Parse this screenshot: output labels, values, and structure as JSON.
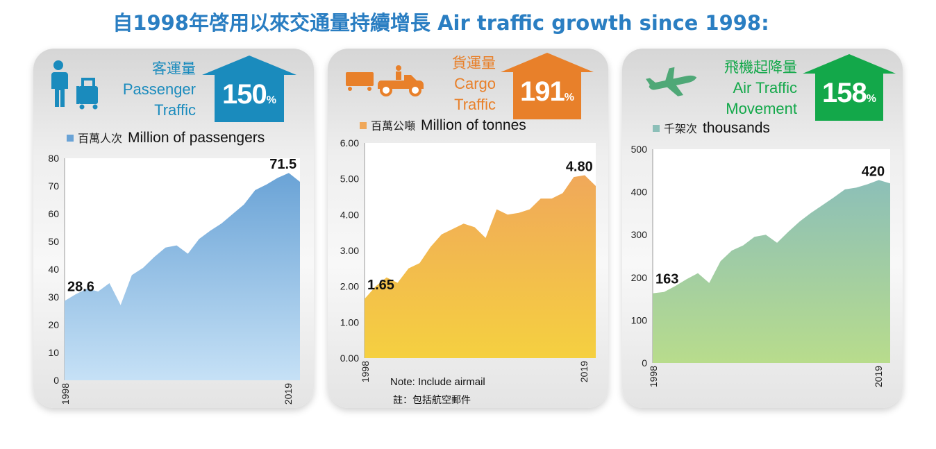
{
  "title": "自1998年啓用以來交通量持續增長 Air traffic growth since 1998:",
  "colors": {
    "title": "#2a7ec2",
    "passenger_accent": "#1a8bbd",
    "cargo_accent": "#e8802a",
    "movement_accent": "#13a84a"
  },
  "panels": [
    {
      "id": "passenger",
      "icon": "passenger-luggage-icon",
      "label_zh": "客運量",
      "label_en_1": "Passenger",
      "label_en_2": "Traffic",
      "growth_value": "150",
      "growth_unit": "%",
      "legend_zh": "百萬人次",
      "legend_en": "Million of passengers"
    },
    {
      "id": "cargo",
      "icon": "cargo-truck-icon",
      "label_zh": "貨運量",
      "label_en_1": "Cargo",
      "label_en_2": "Traffic",
      "growth_value": "191",
      "growth_unit": "%",
      "legend_zh": "百萬公噸",
      "legend_en": "Million of tonnes",
      "note_en": "Note: Include airmail",
      "note_zh": "註：包括航空郵件"
    },
    {
      "id": "movement",
      "icon": "airplane-icon",
      "label_zh": "飛機起降量",
      "label_en_1": "Air Traffic",
      "label_en_2": "Movement",
      "growth_value": "158",
      "growth_unit": "%",
      "legend_zh": "千架次",
      "legend_en": "thousands"
    }
  ],
  "chart_data": [
    {
      "type": "area",
      "years": [
        1998,
        1999,
        2000,
        2001,
        2002,
        2003,
        2004,
        2005,
        2006,
        2007,
        2008,
        2009,
        2010,
        2011,
        2012,
        2013,
        2014,
        2015,
        2016,
        2017,
        2018,
        2019
      ],
      "x_tick_labels": [
        "1998",
        "2019"
      ],
      "values": [
        28.6,
        31,
        33,
        32,
        35,
        27.1,
        37.9,
        40.5,
        44.4,
        47.8,
        48.6,
        45.6,
        50.9,
        53.9,
        56.5,
        59.9,
        63.3,
        68.5,
        70.5,
        72.9,
        74.7,
        71.5
      ],
      "ylim": [
        0,
        80
      ],
      "y_ticks": [
        0,
        10,
        20,
        30,
        40,
        50,
        60,
        70,
        80
      ],
      "y_tick_labels": [
        "0",
        "10",
        "20",
        "30",
        "40",
        "50",
        "60",
        "70",
        "80"
      ],
      "y_decimals": 0,
      "start_label": "28.6",
      "end_label": "71.5",
      "gradient": [
        "#6aa3d6",
        "#c6e1f6"
      ]
    },
    {
      "type": "area",
      "years": [
        1998,
        1999,
        2000,
        2001,
        2002,
        2003,
        2004,
        2005,
        2006,
        2007,
        2008,
        2009,
        2010,
        2011,
        2012,
        2013,
        2014,
        2015,
        2016,
        2017,
        2018,
        2019
      ],
      "x_tick_labels": [
        "1998",
        "2019"
      ],
      "values": [
        1.65,
        2.0,
        2.25,
        2.1,
        2.5,
        2.65,
        3.1,
        3.45,
        3.6,
        3.75,
        3.65,
        3.35,
        4.15,
        4.0,
        4.05,
        4.15,
        4.45,
        4.45,
        4.6,
        5.05,
        5.1,
        4.8
      ],
      "ylim": [
        0,
        6
      ],
      "y_ticks": [
        0,
        1,
        2,
        3,
        4,
        5,
        6
      ],
      "y_tick_labels": [
        "0.00",
        "1.00",
        "2.00",
        "3.00",
        "4.00",
        "5.00",
        "6.00"
      ],
      "y_decimals": 2,
      "start_label": "1.65",
      "end_label": "4.80",
      "gradient": [
        "#f0a85a",
        "#f5d040"
      ]
    },
    {
      "type": "area",
      "years": [
        1998,
        1999,
        2000,
        2001,
        2002,
        2003,
        2004,
        2005,
        2006,
        2007,
        2008,
        2009,
        2010,
        2011,
        2012,
        2013,
        2014,
        2015,
        2016,
        2017,
        2018,
        2019
      ],
      "x_tick_labels": [
        "1998",
        "2019"
      ],
      "values": [
        163,
        166,
        180,
        196,
        210,
        187,
        238,
        263,
        275,
        295,
        300,
        281,
        307,
        331,
        351,
        369,
        387,
        406,
        410,
        418,
        428,
        420
      ],
      "ylim": [
        0,
        500
      ],
      "y_ticks": [
        0,
        100,
        200,
        300,
        400,
        500
      ],
      "y_tick_labels": [
        "0",
        "100",
        "200",
        "300",
        "400",
        "500"
      ],
      "y_decimals": 0,
      "start_label": "163",
      "end_label": "420",
      "gradient": [
        "#8cbfb8",
        "#b8dc8c"
      ]
    }
  ]
}
